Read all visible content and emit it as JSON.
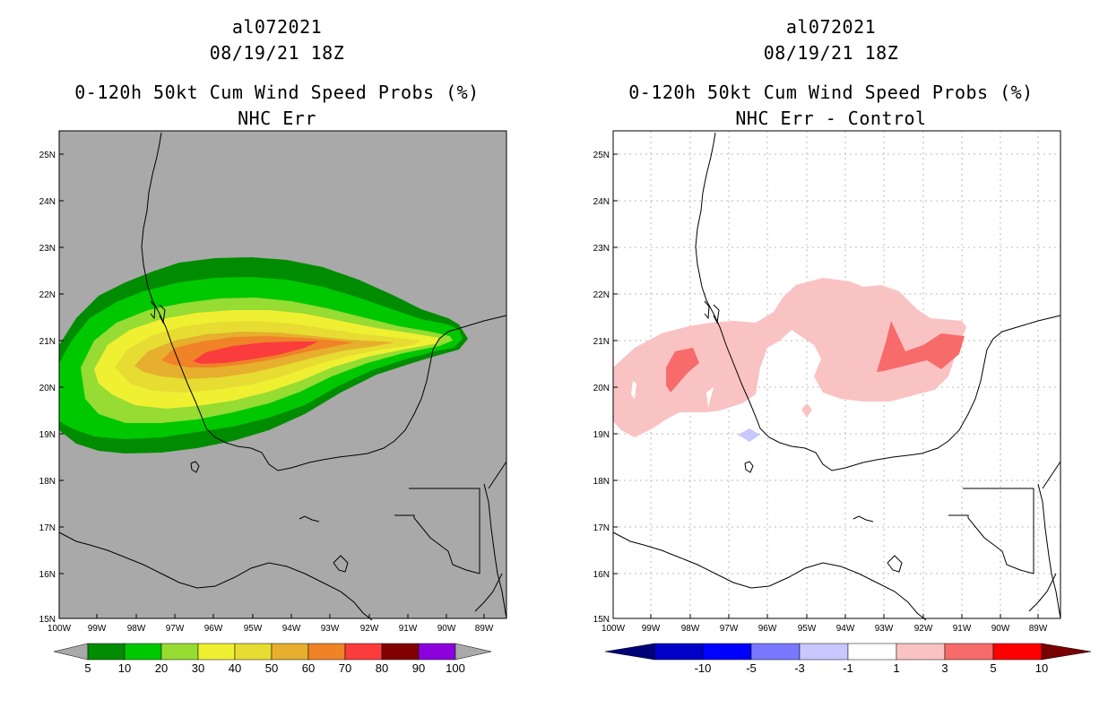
{
  "left_panel": {
    "storm_id": "al072021",
    "datetime": "08/19/21 18Z",
    "product": "0-120h 50kt Cum Wind Speed Probs (%)",
    "subtitle": "NHC Err",
    "background_color": "#a9a9a9",
    "colorbar": {
      "labels": [
        "5",
        "10",
        "20",
        "30",
        "40",
        "50",
        "60",
        "70",
        "80",
        "90",
        "100"
      ],
      "colors": [
        "#008c00",
        "#00c800",
        "#96dc32",
        "#f0f032",
        "#e6dc32",
        "#e6af2d",
        "#f08228",
        "#fa3c3c",
        "#820000",
        "#8c00dc"
      ]
    },
    "contour_levels": [
      5,
      10,
      20,
      30,
      40,
      50,
      60,
      70
    ]
  },
  "right_panel": {
    "storm_id": "al072021",
    "datetime": "08/19/21 18Z",
    "product": "0-120h 50kt Cum Wind Speed Probs (%)",
    "subtitle": "NHC Err - Control",
    "background_color": "#ffffff",
    "colorbar": {
      "labels": [
        "-10",
        "-5",
        "-3",
        "-1",
        "1",
        "3",
        "5",
        "10"
      ],
      "colors": [
        "#0000c8",
        "#0000ff",
        "#7878ff",
        "#c8c8ff",
        "#ffffff",
        "#fac3c3",
        "#f86b6b",
        "#ff0000"
      ],
      "end_low": "#000078",
      "end_high": "#780000"
    }
  },
  "axes": {
    "lat_labels": [
      "25N",
      "24N",
      "23N",
      "22N",
      "21N",
      "20N",
      "19N",
      "18N",
      "17N",
      "16N",
      "15N"
    ],
    "lon_labels": [
      "100W",
      "99W",
      "98W",
      "97W",
      "96W",
      "95W",
      "94W",
      "93W",
      "92W",
      "91W",
      "90W",
      "89W"
    ]
  }
}
